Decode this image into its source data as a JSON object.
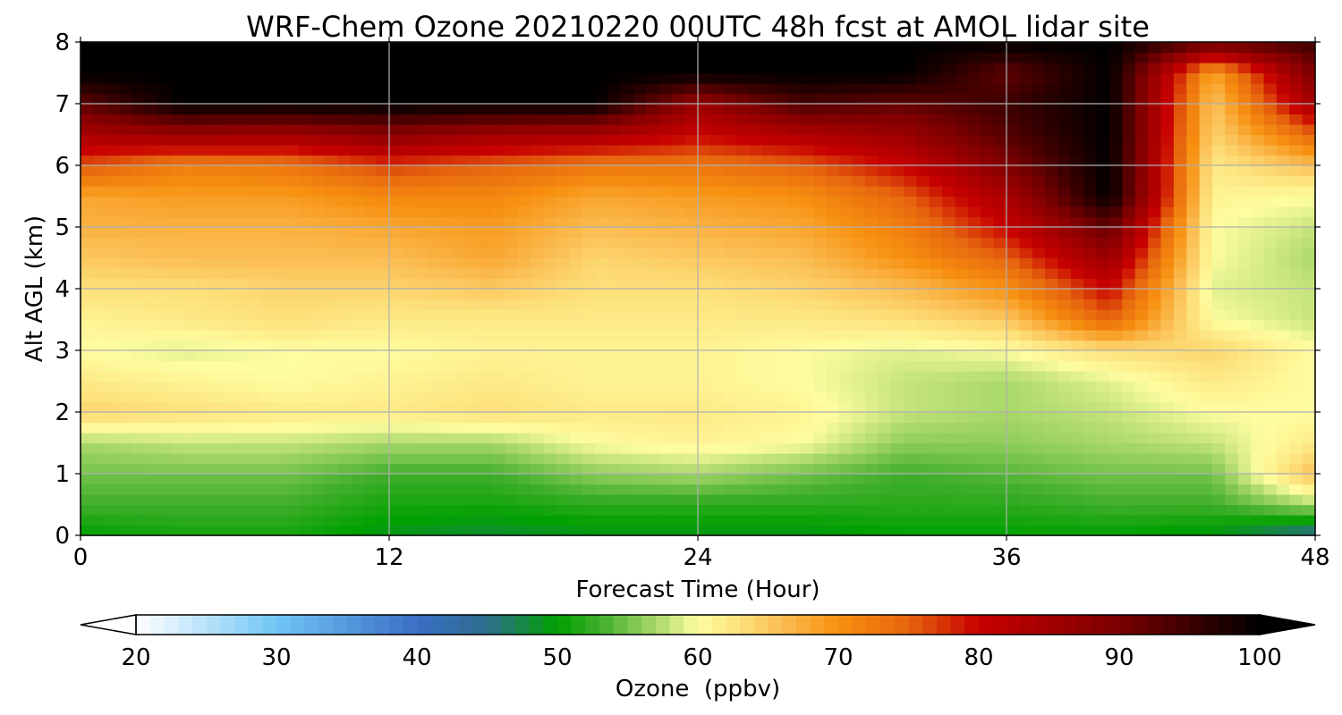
{
  "chart_data": {
    "type": "heatmap",
    "title": "WRF-Chem Ozone  20210220 00UTC 48h fcst at AMOL lidar site",
    "xlabel": "Forecast Time (Hour)",
    "ylabel": "Alt AGL (km)",
    "xlim": [
      0,
      48
    ],
    "ylim": [
      0,
      8
    ],
    "xticks": [
      "0",
      "12",
      "24",
      "36",
      "48"
    ],
    "yticks": [
      "0",
      "1",
      "2",
      "3",
      "4",
      "5",
      "6",
      "7",
      "8"
    ],
    "grid": true,
    "x_hours": [
      0,
      4,
      8,
      12,
      16,
      20,
      24,
      28,
      32,
      36,
      40,
      44,
      48
    ],
    "altitudes_km": [
      0,
      0.5,
      1,
      1.5,
      2,
      2.5,
      3,
      3.5,
      4,
      4.5,
      5,
      5.5,
      6,
      6.5,
      7,
      7.5,
      8
    ],
    "values_ppbv": [
      [
        50,
        51,
        51,
        49,
        48,
        49,
        49,
        49,
        50,
        50,
        50,
        49,
        44
      ],
      [
        53,
        53,
        53,
        51,
        51,
        52,
        52,
        52,
        52,
        52,
        53,
        53,
        57
      ],
      [
        55,
        55,
        55,
        53,
        53,
        56,
        57,
        55,
        53,
        54,
        55,
        55,
        66
      ],
      [
        57,
        58,
        58,
        57,
        57,
        60,
        61,
        60,
        56,
        56,
        57,
        58,
        62
      ],
      [
        64,
        63,
        62,
        62,
        63,
        62,
        62,
        61,
        58,
        57,
        58,
        60,
        60
      ],
      [
        62,
        61,
        60,
        61,
        62,
        61,
        61,
        60,
        58,
        57,
        59,
        62,
        60
      ],
      [
        60,
        59,
        60,
        60,
        61,
        61,
        61,
        60,
        59,
        60,
        63,
        64,
        60
      ],
      [
        61,
        62,
        63,
        62,
        62,
        62,
        62,
        62,
        63,
        65,
        75,
        60,
        58
      ],
      [
        63,
        63,
        64,
        64,
        65,
        63,
        63,
        64,
        66,
        70,
        80,
        59,
        58
      ],
      [
        65,
        66,
        66,
        66,
        68,
        64,
        65,
        66,
        70,
        75,
        86,
        60,
        57
      ],
      [
        67,
        67,
        67,
        68,
        69,
        66,
        67,
        68,
        72,
        80,
        92,
        60,
        58
      ],
      [
        68,
        69,
        69,
        71,
        71,
        68,
        69,
        70,
        75,
        84,
        100,
        61,
        60
      ],
      [
        76,
        72,
        73,
        77,
        75,
        73,
        73,
        75,
        80,
        89,
        100,
        62,
        66
      ],
      [
        84,
        86,
        85,
        88,
        85,
        84,
        80,
        83,
        86,
        93,
        100,
        64,
        75
      ],
      [
        92,
        100,
        100,
        100,
        100,
        100,
        86,
        94,
        92,
        95,
        100,
        65,
        85
      ],
      [
        100,
        100,
        100,
        100,
        100,
        100,
        100,
        100,
        100,
        92,
        100,
        68,
        90
      ],
      [
        100,
        100,
        100,
        100,
        100,
        100,
        100,
        100,
        100,
        100,
        100,
        92,
        95
      ]
    ],
    "colorbar": {
      "label": "Ozone  (ppbv)",
      "range": [
        20,
        100
      ],
      "extend": "both",
      "ticks": [
        "20",
        "30",
        "40",
        "50",
        "60",
        "70",
        "80",
        "90",
        "100"
      ]
    }
  },
  "colors": {
    "palette": [
      [
        20,
        "#ffffff"
      ],
      [
        30,
        "#71c5f5"
      ],
      [
        40,
        "#3a6ec4"
      ],
      [
        45,
        "#2e6d8e"
      ],
      [
        50,
        "#00a000"
      ],
      [
        53,
        "#3fae2a"
      ],
      [
        57,
        "#a9d869"
      ],
      [
        60,
        "#fefda0"
      ],
      [
        63,
        "#fde07a"
      ],
      [
        66,
        "#fbbd52"
      ],
      [
        70,
        "#f79010"
      ],
      [
        75,
        "#e6650e"
      ],
      [
        80,
        "#c70000"
      ],
      [
        85,
        "#a20000"
      ],
      [
        90,
        "#7a0000"
      ],
      [
        95,
        "#3c0000"
      ],
      [
        100,
        "#000000"
      ]
    ],
    "grid": "#b0b0b0",
    "frame": "#000000"
  }
}
